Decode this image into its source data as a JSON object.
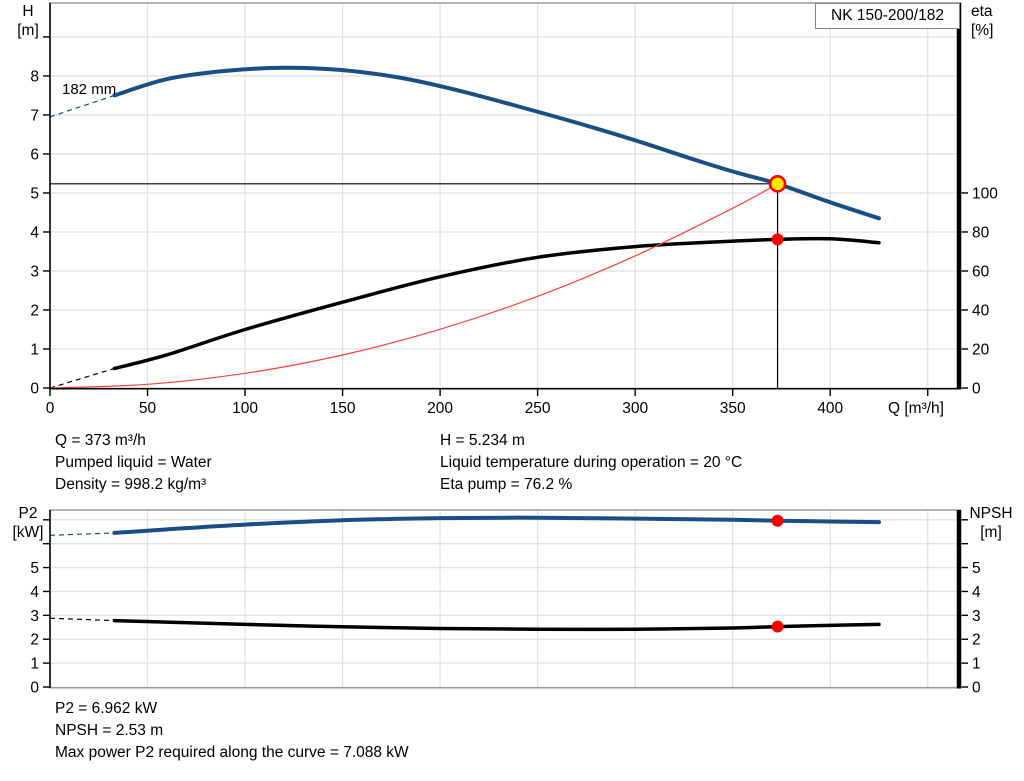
{
  "title_box": {
    "label": "NK 150-200/182"
  },
  "labels": {
    "impeller": "182 mm",
    "h_axis": "H\n[m]",
    "eta_axis": "eta\n[%]",
    "q_axis": "Q [m³/h]",
    "p2_axis": "P2\n[kW]",
    "npsh_axis": "NPSH\n[m]"
  },
  "info_top_left": [
    "Q = 373 m³/h",
    "Pumped liquid = Water",
    "Density = 998.2 kg/m³"
  ],
  "info_top_right": [
    "H = 5.234 m",
    "Liquid temperature during operation = 20 °C",
    "Eta pump = 76.2 %"
  ],
  "info_bottom": [
    "P2 = 6.962 kW",
    "NPSH = 2.53 m",
    "Max power P2 required along the curve = 7.088 kW"
  ],
  "colors": {
    "curve_blue": "#1a4f85",
    "curve_black": "#000000",
    "system_red": "#f94040",
    "marker_red": "#ff0000",
    "duty_yellow": "#ffe800",
    "grid": "#e1e1e1",
    "border_gray": "#9c9c9c",
    "axis_black": "#000000"
  },
  "chart_data": [
    {
      "type": "line",
      "title": "NK 150-200/182",
      "xlabel": "Q [m³/h]",
      "ylabel_left": "H [m]",
      "ylabel_right": "eta [%]",
      "xlim": [
        0,
        465
      ],
      "ylim_left": [
        0,
        9.87
      ],
      "ylim_right": [
        0,
        197.4
      ],
      "grid": true,
      "x_gridlines": [
        50,
        100,
        150,
        200,
        250,
        300,
        350,
        400,
        450
      ],
      "y_gridlines_left": [
        1,
        2,
        3,
        4,
        5,
        6,
        7,
        8,
        9
      ],
      "axes": {
        "x": {
          "tick_values": [
            0,
            50,
            100,
            150,
            200,
            250,
            300,
            350,
            400,
            450
          ],
          "label_values": [
            0,
            50,
            100,
            150,
            200,
            250,
            300,
            350,
            400
          ]
        },
        "left": {
          "tick_values": [
            0,
            1,
            2,
            3,
            4,
            5,
            6,
            7,
            8,
            9
          ],
          "label_values": [
            0,
            1,
            2,
            3,
            4,
            5,
            6,
            7,
            8
          ]
        },
        "right": {
          "tick_values": [
            0,
            20,
            40,
            60,
            80,
            100
          ],
          "label_values": [
            0,
            20,
            40,
            60,
            80,
            100
          ]
        }
      },
      "series": [
        {
          "name": "pump-curve-182mm",
          "axis": "left",
          "color_key": "curve_blue",
          "width": 4,
          "lead_dash": [
            [
              0,
              6.95
            ],
            [
              33,
              7.5
            ]
          ],
          "points": [
            [
              33,
              7.5
            ],
            [
              60,
              7.92
            ],
            [
              90,
              8.13
            ],
            [
              120,
              8.21
            ],
            [
              150,
              8.15
            ],
            [
              180,
              7.95
            ],
            [
              210,
              7.62
            ],
            [
              240,
              7.22
            ],
            [
              270,
              6.8
            ],
            [
              300,
              6.35
            ],
            [
              330,
              5.86
            ],
            [
              350,
              5.55
            ],
            [
              373,
              5.234
            ],
            [
              400,
              4.76
            ],
            [
              425,
              4.35
            ]
          ]
        },
        {
          "name": "efficiency-curve",
          "axis": "right",
          "color_key": "curve_black",
          "width": 3.5,
          "lead_dash": [
            [
              0,
              0
            ],
            [
              33,
              10
            ]
          ],
          "points": [
            [
              33,
              10
            ],
            [
              60,
              17
            ],
            [
              100,
              30
            ],
            [
              150,
              44
            ],
            [
              200,
              57
            ],
            [
              250,
              67
            ],
            [
              300,
              72.5
            ],
            [
              350,
              75.3
            ],
            [
              373,
              76.2
            ],
            [
              400,
              76.5
            ],
            [
              425,
              74.5
            ]
          ]
        },
        {
          "name": "system-curve",
          "axis": "left",
          "color_key": "system_red",
          "width": 1.2,
          "points": [
            [
              0,
              0
            ],
            [
              50,
              0.094
            ],
            [
              100,
              0.376
            ],
            [
              150,
              0.846
            ],
            [
              200,
              1.505
            ],
            [
              250,
              2.351
            ],
            [
              300,
              3.386
            ],
            [
              350,
              4.609
            ],
            [
              373,
              5.234
            ]
          ]
        }
      ],
      "crosshair": {
        "x": 373,
        "y": 5.234,
        "axis": "left"
      },
      "markers": [
        {
          "name": "duty-point",
          "x": 373,
          "y": 5.234,
          "axis": "left",
          "r": 7.5,
          "fill_key": "duty_yellow",
          "stroke_key": "marker_red",
          "stroke_width": 2.6
        },
        {
          "name": "efficiency-point",
          "x": 373,
          "y": 76.2,
          "axis": "right",
          "r": 6,
          "fill_key": "marker_red"
        }
      ]
    },
    {
      "type": "line",
      "title": "",
      "xlabel": "",
      "ylabel_left": "P2 [kW]",
      "ylabel_right": "NPSH [m]",
      "xlim": [
        0,
        465
      ],
      "ylim_left": [
        0,
        7.41
      ],
      "ylim_right": [
        0,
        7.41
      ],
      "grid": true,
      "x_gridlines": [
        50,
        100,
        150,
        200,
        250,
        300,
        350,
        400,
        450
      ],
      "y_gridlines_left": [
        1,
        2,
        3,
        4,
        5,
        6,
        7
      ],
      "axes": {
        "x": {
          "tick_values": [],
          "label_values": []
        },
        "left": {
          "tick_values": [
            0,
            1,
            2,
            3,
            4,
            5,
            6,
            7
          ],
          "label_values": [
            0,
            1,
            2,
            3,
            4,
            5
          ]
        },
        "right": {
          "tick_values": [
            0,
            1,
            2,
            3,
            4,
            5,
            6,
            7
          ],
          "label_values": [
            0,
            1,
            2,
            3,
            4,
            5
          ]
        }
      },
      "series": [
        {
          "name": "p2-curve",
          "axis": "left",
          "color_key": "curve_blue",
          "width": 4,
          "lead_dash": [
            [
              0,
              6.35
            ],
            [
              33,
              6.45
            ]
          ],
          "points": [
            [
              33,
              6.45
            ],
            [
              60,
              6.6
            ],
            [
              100,
              6.8
            ],
            [
              150,
              6.98
            ],
            [
              200,
              7.07
            ],
            [
              250,
              7.088
            ],
            [
              300,
              7.05
            ],
            [
              350,
              7.0
            ],
            [
              373,
              6.962
            ],
            [
              400,
              6.93
            ],
            [
              425,
              6.9
            ]
          ]
        },
        {
          "name": "npsh-curve",
          "axis": "right",
          "color_key": "curve_black",
          "width": 3.5,
          "lead_dash": [
            [
              0,
              2.88
            ],
            [
              33,
              2.78
            ]
          ],
          "points": [
            [
              33,
              2.78
            ],
            [
              100,
              2.62
            ],
            [
              150,
              2.52
            ],
            [
              200,
              2.45
            ],
            [
              250,
              2.42
            ],
            [
              300,
              2.42
            ],
            [
              350,
              2.47
            ],
            [
              373,
              2.53
            ],
            [
              400,
              2.58
            ],
            [
              425,
              2.62
            ]
          ]
        }
      ],
      "markers": [
        {
          "name": "p2-point",
          "x": 373,
          "y": 6.962,
          "axis": "left",
          "r": 6,
          "fill_key": "marker_red"
        },
        {
          "name": "npsh-point",
          "x": 373,
          "y": 2.53,
          "axis": "right",
          "r": 6,
          "fill_key": "marker_red"
        }
      ]
    }
  ]
}
